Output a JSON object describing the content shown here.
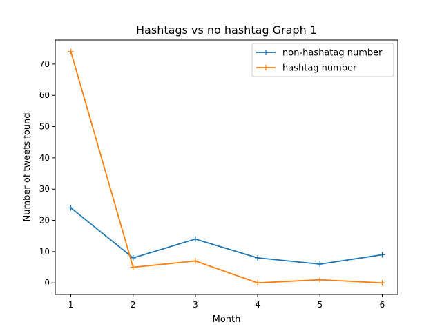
{
  "chart_data": {
    "type": "line",
    "title": "Hashtags vs no hashtag Graph 1",
    "xlabel": "Month",
    "ylabel": "Number of tweets found",
    "x": [
      1,
      2,
      3,
      4,
      5,
      6
    ],
    "xlim": [
      0.75,
      6.25
    ],
    "ylim": [
      -3.7,
      77.7
    ],
    "xticks": [
      1,
      2,
      3,
      4,
      5,
      6
    ],
    "yticks": [
      0,
      10,
      20,
      30,
      40,
      50,
      60,
      70
    ],
    "grid": false,
    "legend": "top-right",
    "marker": "+",
    "series": [
      {
        "name": "non-hashatag number",
        "color": "#1f77b4",
        "values": [
          24,
          8,
          14,
          8,
          6,
          9
        ]
      },
      {
        "name": "hashtag number",
        "color": "#ff7f0e",
        "values": [
          74,
          5,
          7,
          0,
          1,
          0
        ]
      }
    ]
  }
}
